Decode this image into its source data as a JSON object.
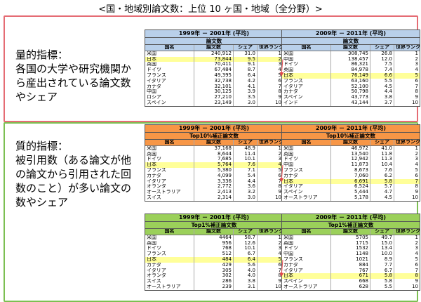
{
  "title": "<国・地域別論文数：上位 10 ヶ国・地域（全分野）>",
  "labels": {
    "quantitative_head": "量的指標：",
    "quantitative_body": "各国の大学や研究機関から産出されている論文数やシェア",
    "qualitative_head": "質的指標：",
    "qualitative_body": "被引用数（ある論文が他の論文から引用された回数のこと）が多い論文の数やシェア"
  },
  "chart_data": [
    {
      "type": "table",
      "id": "papers_1999",
      "period": "1999年 － 2001年 (平均)",
      "metric": "論文数",
      "columns": [
        "国名",
        "論文数",
        "シェア",
        "世界ランク"
      ],
      "rows": [
        [
          "米国",
          "240,912",
          "31.0",
          "1"
        ],
        [
          "日本",
          "73,844",
          "9.5",
          "2"
        ],
        [
          "英国",
          "70,411",
          "9.1",
          "3"
        ],
        [
          "ドイツ",
          "67,484",
          "8.7",
          "4"
        ],
        [
          "フランス",
          "49,395",
          "6.4",
          "5"
        ],
        [
          "イタリア",
          "32,738",
          "4.2",
          "6"
        ],
        [
          "カナダ",
          "32,101",
          "4.1",
          "7"
        ],
        [
          "中国",
          "30,125",
          "3.9",
          "8"
        ],
        [
          "ロシア",
          "27,210",
          "3.5",
          "9"
        ],
        [
          "スペイン",
          "23,149",
          "3.0",
          "10"
        ]
      ],
      "highlight": "日本"
    },
    {
      "type": "table",
      "id": "papers_2009",
      "period": "2009年 － 2011年 (平均)",
      "metric": "論文数",
      "columns": [
        "国名",
        "論文数",
        "シェア",
        "世界ランク"
      ],
      "rows": [
        [
          "米国",
          "308,745",
          "26.8",
          "1"
        ],
        [
          "中国",
          "138,457",
          "12.0",
          "2"
        ],
        [
          "ドイツ",
          "86,321",
          "7.5",
          "3"
        ],
        [
          "英国",
          "84,978",
          "7.4",
          "4"
        ],
        [
          "日本",
          "76,149",
          "6.6",
          "5"
        ],
        [
          "フランス",
          "63,160",
          "5.5",
          "6"
        ],
        [
          "イタリア",
          "52,100",
          "4.5",
          "7"
        ],
        [
          "カナダ",
          "50,798",
          "4.4",
          "8"
        ],
        [
          "スペイン",
          "43,773",
          "3.8",
          "9"
        ],
        [
          "インド",
          "43,144",
          "3.7",
          "10"
        ]
      ],
      "highlight": "日本"
    },
    {
      "type": "table",
      "id": "top10_1999",
      "period": "1999年 － 2001年 (平均)",
      "metric": "Top10%補正論文数",
      "columns": [
        "国名",
        "論文数",
        "シェア",
        "世界ランク"
      ],
      "rows": [
        [
          "米国",
          "37,168",
          "48.9",
          "1"
        ],
        [
          "英国",
          "8,644",
          "11.4",
          "2"
        ],
        [
          "ドイツ",
          "7,685",
          "10.1",
          "3"
        ],
        [
          "日本",
          "5,764",
          "7.6",
          "4"
        ],
        [
          "フランス",
          "5,380",
          "7.1",
          "5"
        ],
        [
          "カナダ",
          "4,099",
          "5.4",
          "6"
        ],
        [
          "イタリア",
          "3,336",
          "4.4",
          "7"
        ],
        [
          "オランダ",
          "2,772",
          "3.6",
          "8"
        ],
        [
          "オーストラリア",
          "2,413",
          "3.2",
          "9"
        ],
        [
          "スイス",
          "2,314",
          "3.0",
          "10"
        ]
      ],
      "highlight": "日本"
    },
    {
      "type": "table",
      "id": "top10_2009",
      "period": "2009年 － 2011年 (平均)",
      "metric": "Top10%補正論文数",
      "columns": [
        "国名",
        "論文数",
        "シェア",
        "世界ランク"
      ],
      "rows": [
        [
          "米国",
          "46,972",
          "41.0",
          "1"
        ],
        [
          "英国",
          "13,540",
          "11.8",
          "2"
        ],
        [
          "ドイツ",
          "12,942",
          "11.3",
          "3"
        ],
        [
          "中国",
          "11,873",
          "10.4",
          "4"
        ],
        [
          "フランス",
          "8,673",
          "7.6",
          "5"
        ],
        [
          "カナダ",
          "7,060",
          "6.2",
          "6"
        ],
        [
          "日本",
          "6,691",
          "5.8",
          "7"
        ],
        [
          "イタリア",
          "6,524",
          "5.7",
          "8"
        ],
        [
          "スペイン",
          "5,444",
          "4.7",
          "9"
        ],
        [
          "オーストラリア",
          "5,178",
          "4.5",
          "10"
        ]
      ],
      "highlight": "日本"
    },
    {
      "type": "table",
      "id": "top1_1999",
      "period": "1999年 － 2001年 (平均)",
      "metric": "Top1%補正論文数",
      "columns": [
        "国名",
        "論文数",
        "シェア",
        "世界ランク"
      ],
      "rows": [
        [
          "米国",
          "4464",
          "58.7",
          "1"
        ],
        [
          "英国",
          "956",
          "12.6",
          "2"
        ],
        [
          "ドイツ",
          "768",
          "10.1",
          "3"
        ],
        [
          "フランス",
          "512",
          "6.7",
          "4"
        ],
        [
          "日本",
          "484",
          "6.4",
          "5"
        ],
        [
          "カナダ",
          "429",
          "5.6",
          "6"
        ],
        [
          "イタリア",
          "305",
          "4.0",
          "7"
        ],
        [
          "オランダ",
          "302",
          "4.0",
          "8"
        ],
        [
          "スイス",
          "286",
          "3.8",
          "9"
        ],
        [
          "オーストラリア",
          "239",
          "3.1",
          "10"
        ]
      ],
      "highlight": "日本"
    },
    {
      "type": "table",
      "id": "top1_2009",
      "period": "2009年 － 2011年 (平均)",
      "metric": "Top1%補正論文数",
      "columns": [
        "国名",
        "論文数",
        "シェア",
        "世界ランク"
      ],
      "rows": [
        [
          "米国",
          "5705",
          "49.7",
          "1"
        ],
        [
          "英国",
          "1715",
          "15.0",
          "2"
        ],
        [
          "ドイツ",
          "1532",
          "13.4",
          "3"
        ],
        [
          "中国",
          "1148",
          "10.0",
          "4"
        ],
        [
          "フランス",
          "1021",
          "8.9",
          "5"
        ],
        [
          "カナダ",
          "884",
          "7.7",
          "6"
        ],
        [
          "イタリア",
          "767",
          "6.7",
          "7"
        ],
        [
          "日本",
          "671",
          "5.8",
          "8"
        ],
        [
          "スペイン",
          "668",
          "5.8",
          "9"
        ],
        [
          "オーストラリア",
          "628",
          "5.5",
          "10"
        ]
      ],
      "highlight": "日本"
    }
  ]
}
